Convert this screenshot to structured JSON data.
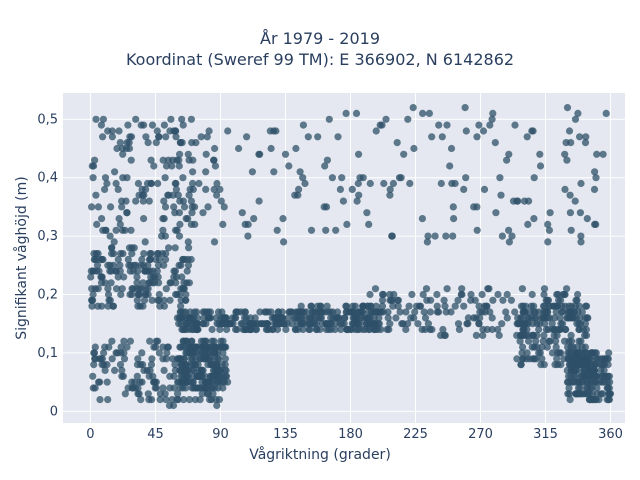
{
  "chart_data": {
    "type": "scatter",
    "title": "År 1979 - 2019",
    "subtitle": "Koordinat (Sweref 99 TM): E 366902, N 6142862",
    "xlabel": "Vågriktning (grader)",
    "ylabel": "Signifikant våghöjd (m)",
    "xlim": [
      -19,
      370
    ],
    "ylim": [
      -0.02,
      0.545
    ],
    "xticks": [
      0,
      45,
      90,
      135,
      180,
      225,
      270,
      315,
      360
    ],
    "xtick_labels": [
      "0",
      "45",
      "90",
      "135",
      "180",
      "225",
      "270",
      "315",
      "360"
    ],
    "yticks": [
      0,
      0.1,
      0.2,
      0.3,
      0.4,
      0.5
    ],
    "ytick_labels": [
      "0",
      "0,1",
      "0,2",
      "0,3",
      "0,4",
      "0,5"
    ],
    "grid": true,
    "marker_color": "#2e5068",
    "background_color": "#e5e8f0",
    "clusters": [
      {
        "x": [
          0,
          88
        ],
        "y": [
          0.28,
          0.5
        ]
      },
      {
        "x": [
          88,
          360
        ],
        "y": [
          0.29,
          0.52
        ]
      },
      {
        "x": [
          0,
          70
        ],
        "y": [
          0.18,
          0.28
        ]
      },
      {
        "x": [
          60,
          135
        ],
        "y": [
          0.14,
          0.17
        ]
      },
      {
        "x": [
          135,
          200
        ],
        "y": [
          0.14,
          0.18
        ]
      },
      {
        "x": [
          190,
          340
        ],
        "y": [
          0.13,
          0.21
        ]
      },
      {
        "x": [
          295,
          345
        ],
        "y": [
          0.08,
          0.18
        ]
      },
      {
        "x": [
          0,
          90
        ],
        "y": [
          0.01,
          0.12
        ]
      },
      {
        "x": [
          330,
          360
        ],
        "y": [
          0.02,
          0.1
        ]
      },
      {
        "x": [
          60,
          95
        ],
        "y": [
          0.04,
          0.12
        ]
      }
    ]
  }
}
